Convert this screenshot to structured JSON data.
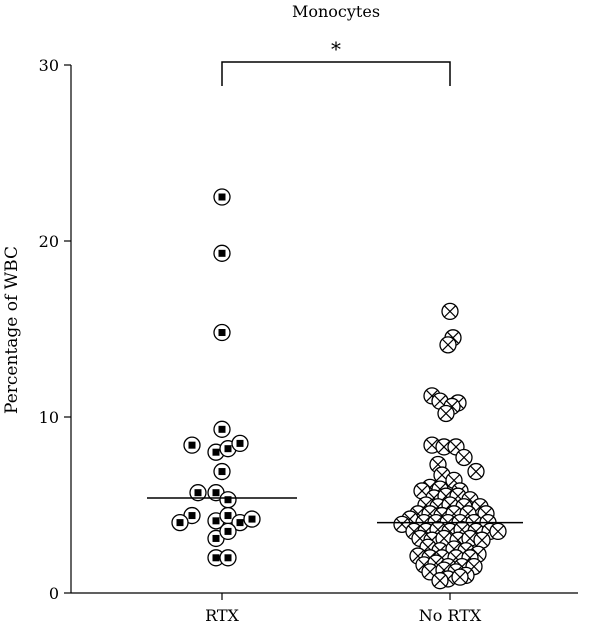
{
  "chart_data": {
    "type": "scatter",
    "title": "Monocytes",
    "ylabel": "Percentage of WBC",
    "xlabel": "",
    "ylim": [
      0,
      30
    ],
    "yticks": [
      0,
      10,
      20,
      30
    ],
    "grid": false,
    "categories": [
      "RTX",
      "No RTX"
    ],
    "significance": {
      "between": [
        "RTX",
        "No RTX"
      ],
      "label": "*"
    },
    "series": [
      {
        "name": "RTX",
        "marker": "circle-filled-square",
        "median": 5.4,
        "points": [
          {
            "x": 0,
            "y": 22.5
          },
          {
            "x": 0,
            "y": 19.3
          },
          {
            "x": 0,
            "y": 14.8
          },
          {
            "x": 0,
            "y": 9.3
          },
          {
            "x": -0.3,
            "y": 8.4
          },
          {
            "x": -0.06,
            "y": 8.0
          },
          {
            "x": 0.06,
            "y": 8.2
          },
          {
            "x": 0.18,
            "y": 8.5
          },
          {
            "x": 0,
            "y": 6.9
          },
          {
            "x": -0.24,
            "y": 5.7
          },
          {
            "x": -0.06,
            "y": 5.7
          },
          {
            "x": 0.06,
            "y": 5.3
          },
          {
            "x": -0.3,
            "y": 4.4
          },
          {
            "x": -0.06,
            "y": 4.1
          },
          {
            "x": 0.06,
            "y": 4.4
          },
          {
            "x": -0.42,
            "y": 4.0
          },
          {
            "x": 0.18,
            "y": 4.0
          },
          {
            "x": 0.3,
            "y": 4.2
          },
          {
            "x": -0.06,
            "y": 3.1
          },
          {
            "x": 0.06,
            "y": 3.5
          },
          {
            "x": -0.06,
            "y": 2.0
          },
          {
            "x": 0.06,
            "y": 2.0
          }
        ]
      },
      {
        "name": "No RTX",
        "marker": "circle-cross",
        "median": 4.0,
        "points": [
          {
            "x": 0,
            "y": 16.0
          },
          {
            "x": 0.03,
            "y": 14.5
          },
          {
            "x": -0.02,
            "y": 14.1
          },
          {
            "x": -0.18,
            "y": 11.2
          },
          {
            "x": -0.1,
            "y": 10.9
          },
          {
            "x": 0.08,
            "y": 10.8
          },
          {
            "x": 0.02,
            "y": 10.6
          },
          {
            "x": -0.04,
            "y": 10.2
          },
          {
            "x": -0.18,
            "y": 8.4
          },
          {
            "x": -0.06,
            "y": 8.3
          },
          {
            "x": 0.06,
            "y": 8.3
          },
          {
            "x": 0.14,
            "y": 7.7
          },
          {
            "x": -0.12,
            "y": 7.3
          },
          {
            "x": 0.26,
            "y": 6.9
          },
          {
            "x": -0.08,
            "y": 6.7
          },
          {
            "x": 0.04,
            "y": 6.4
          },
          {
            "x": -0.2,
            "y": 6.0
          },
          {
            "x": -0.1,
            "y": 5.9
          },
          {
            "x": 0.1,
            "y": 5.8
          },
          {
            "x": -0.28,
            "y": 5.8
          },
          {
            "x": -0.16,
            "y": 5.4
          },
          {
            "x": -0.04,
            "y": 5.5
          },
          {
            "x": 0.08,
            "y": 5.5
          },
          {
            "x": 0.2,
            "y": 5.3
          },
          {
            "x": -0.24,
            "y": 5.0
          },
          {
            "x": -0.12,
            "y": 4.9
          },
          {
            "x": 0,
            "y": 5.0
          },
          {
            "x": 0.14,
            "y": 4.9
          },
          {
            "x": 0.3,
            "y": 4.9
          },
          {
            "x": 0.36,
            "y": 4.5
          },
          {
            "x": -0.32,
            "y": 4.5
          },
          {
            "x": -0.2,
            "y": 4.5
          },
          {
            "x": -0.08,
            "y": 4.4
          },
          {
            "x": 0.04,
            "y": 4.5
          },
          {
            "x": 0.18,
            "y": 4.5
          },
          {
            "x": -0.4,
            "y": 4.2
          },
          {
            "x": -0.26,
            "y": 4.0
          },
          {
            "x": -0.14,
            "y": 4.0
          },
          {
            "x": -0.02,
            "y": 4.0
          },
          {
            "x": 0.1,
            "y": 4.0
          },
          {
            "x": 0.24,
            "y": 4.0
          },
          {
            "x": 0.38,
            "y": 4.0
          },
          {
            "x": -0.48,
            "y": 3.9
          },
          {
            "x": -0.36,
            "y": 3.5
          },
          {
            "x": -0.24,
            "y": 3.5
          },
          {
            "x": -0.12,
            "y": 3.6
          },
          {
            "x": 0,
            "y": 3.5
          },
          {
            "x": 0.12,
            "y": 3.6
          },
          {
            "x": 0.26,
            "y": 3.5
          },
          {
            "x": 0.4,
            "y": 3.5
          },
          {
            "x": 0.48,
            "y": 3.5
          },
          {
            "x": -0.3,
            "y": 3.1
          },
          {
            "x": -0.18,
            "y": 3.0
          },
          {
            "x": -0.06,
            "y": 3.1
          },
          {
            "x": 0.08,
            "y": 3.0
          },
          {
            "x": 0.2,
            "y": 3.1
          },
          {
            "x": 0.32,
            "y": 3.0
          },
          {
            "x": -0.22,
            "y": 2.6
          },
          {
            "x": -0.1,
            "y": 2.4
          },
          {
            "x": 0.04,
            "y": 2.5
          },
          {
            "x": 0.16,
            "y": 2.4
          },
          {
            "x": 0.28,
            "y": 2.2
          },
          {
            "x": -0.32,
            "y": 2.1
          },
          {
            "x": -0.2,
            "y": 2.0
          },
          {
            "x": -0.08,
            "y": 2.0
          },
          {
            "x": 0.06,
            "y": 2.0
          },
          {
            "x": 0.2,
            "y": 2.0
          },
          {
            "x": -0.26,
            "y": 1.6
          },
          {
            "x": -0.14,
            "y": 1.7
          },
          {
            "x": -0.02,
            "y": 1.5
          },
          {
            "x": 0.12,
            "y": 1.5
          },
          {
            "x": 0.24,
            "y": 1.5
          },
          {
            "x": -0.2,
            "y": 1.2
          },
          {
            "x": -0.06,
            "y": 1.3
          },
          {
            "x": 0.06,
            "y": 1.2
          },
          {
            "x": 0.16,
            "y": 1.0
          },
          {
            "x": -0.02,
            "y": 0.8
          },
          {
            "x": 0.1,
            "y": 0.9
          },
          {
            "x": -0.1,
            "y": 0.7
          }
        ]
      }
    ]
  }
}
